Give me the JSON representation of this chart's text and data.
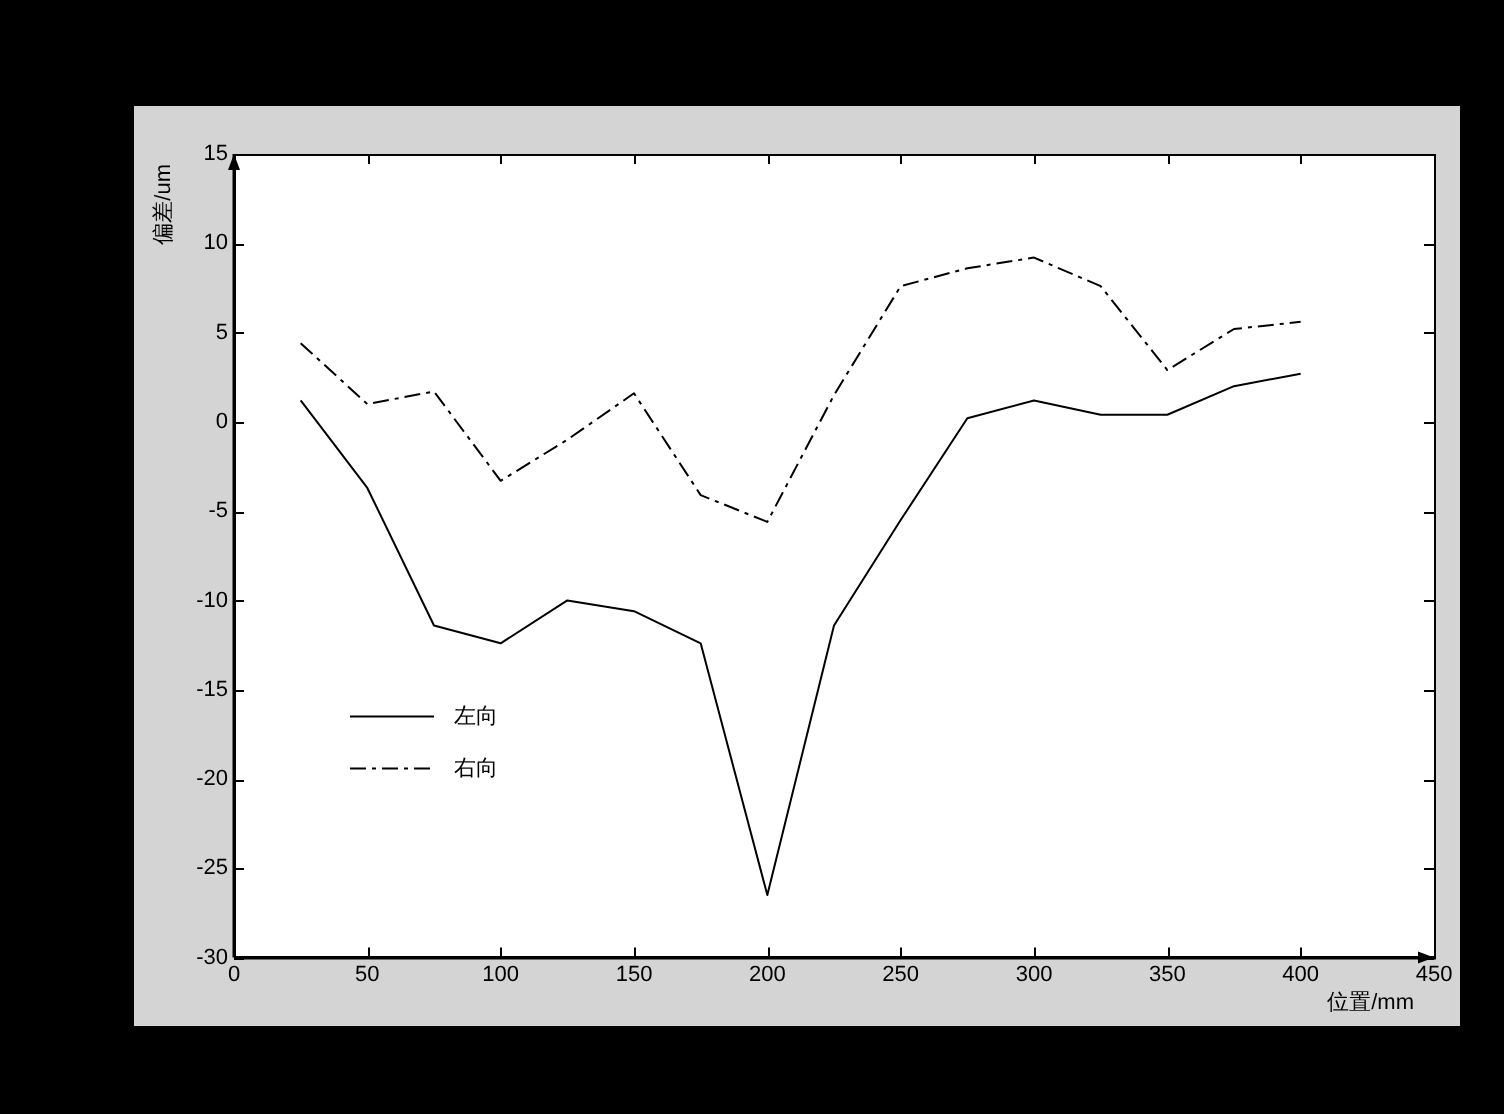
{
  "chart_data": {
    "type": "line",
    "xlabel": "位置/mm",
    "ylabel": "偏差/um",
    "x": [
      25,
      50,
      75,
      100,
      125,
      150,
      175,
      200,
      225,
      250,
      275,
      300,
      325,
      350,
      375,
      400
    ],
    "series": [
      {
        "name": "左向",
        "color": "#000000",
        "line_style": "solid",
        "values": [
          1.2,
          -3.7,
          -11.4,
          -12.4,
          -10,
          -10.6,
          -12.4,
          -26.5,
          -11.4,
          -5.5,
          0.2,
          1.2,
          0.4,
          0.4,
          2,
          2.7
        ]
      },
      {
        "name": "右向",
        "color": "#000000",
        "line_style": "dashed",
        "values": [
          4.4,
          1,
          1.7,
          -3.3,
          -1,
          1.6,
          -4.1,
          -5.6,
          1.5,
          7.6,
          8.6,
          9.2,
          7.6,
          2.9,
          5.2,
          5.6
        ]
      }
    ],
    "xlim": [
      0,
      450
    ],
    "xticks": [
      0,
      50,
      100,
      150,
      200,
      250,
      300,
      350,
      400,
      450
    ],
    "ylim": [
      -30,
      15
    ],
    "yticks": [
      -30,
      -25,
      -20,
      -15,
      -10,
      -5,
      0,
      5,
      10,
      15
    ],
    "grid": false,
    "legend": "bottom left",
    "marker": "none"
  }
}
